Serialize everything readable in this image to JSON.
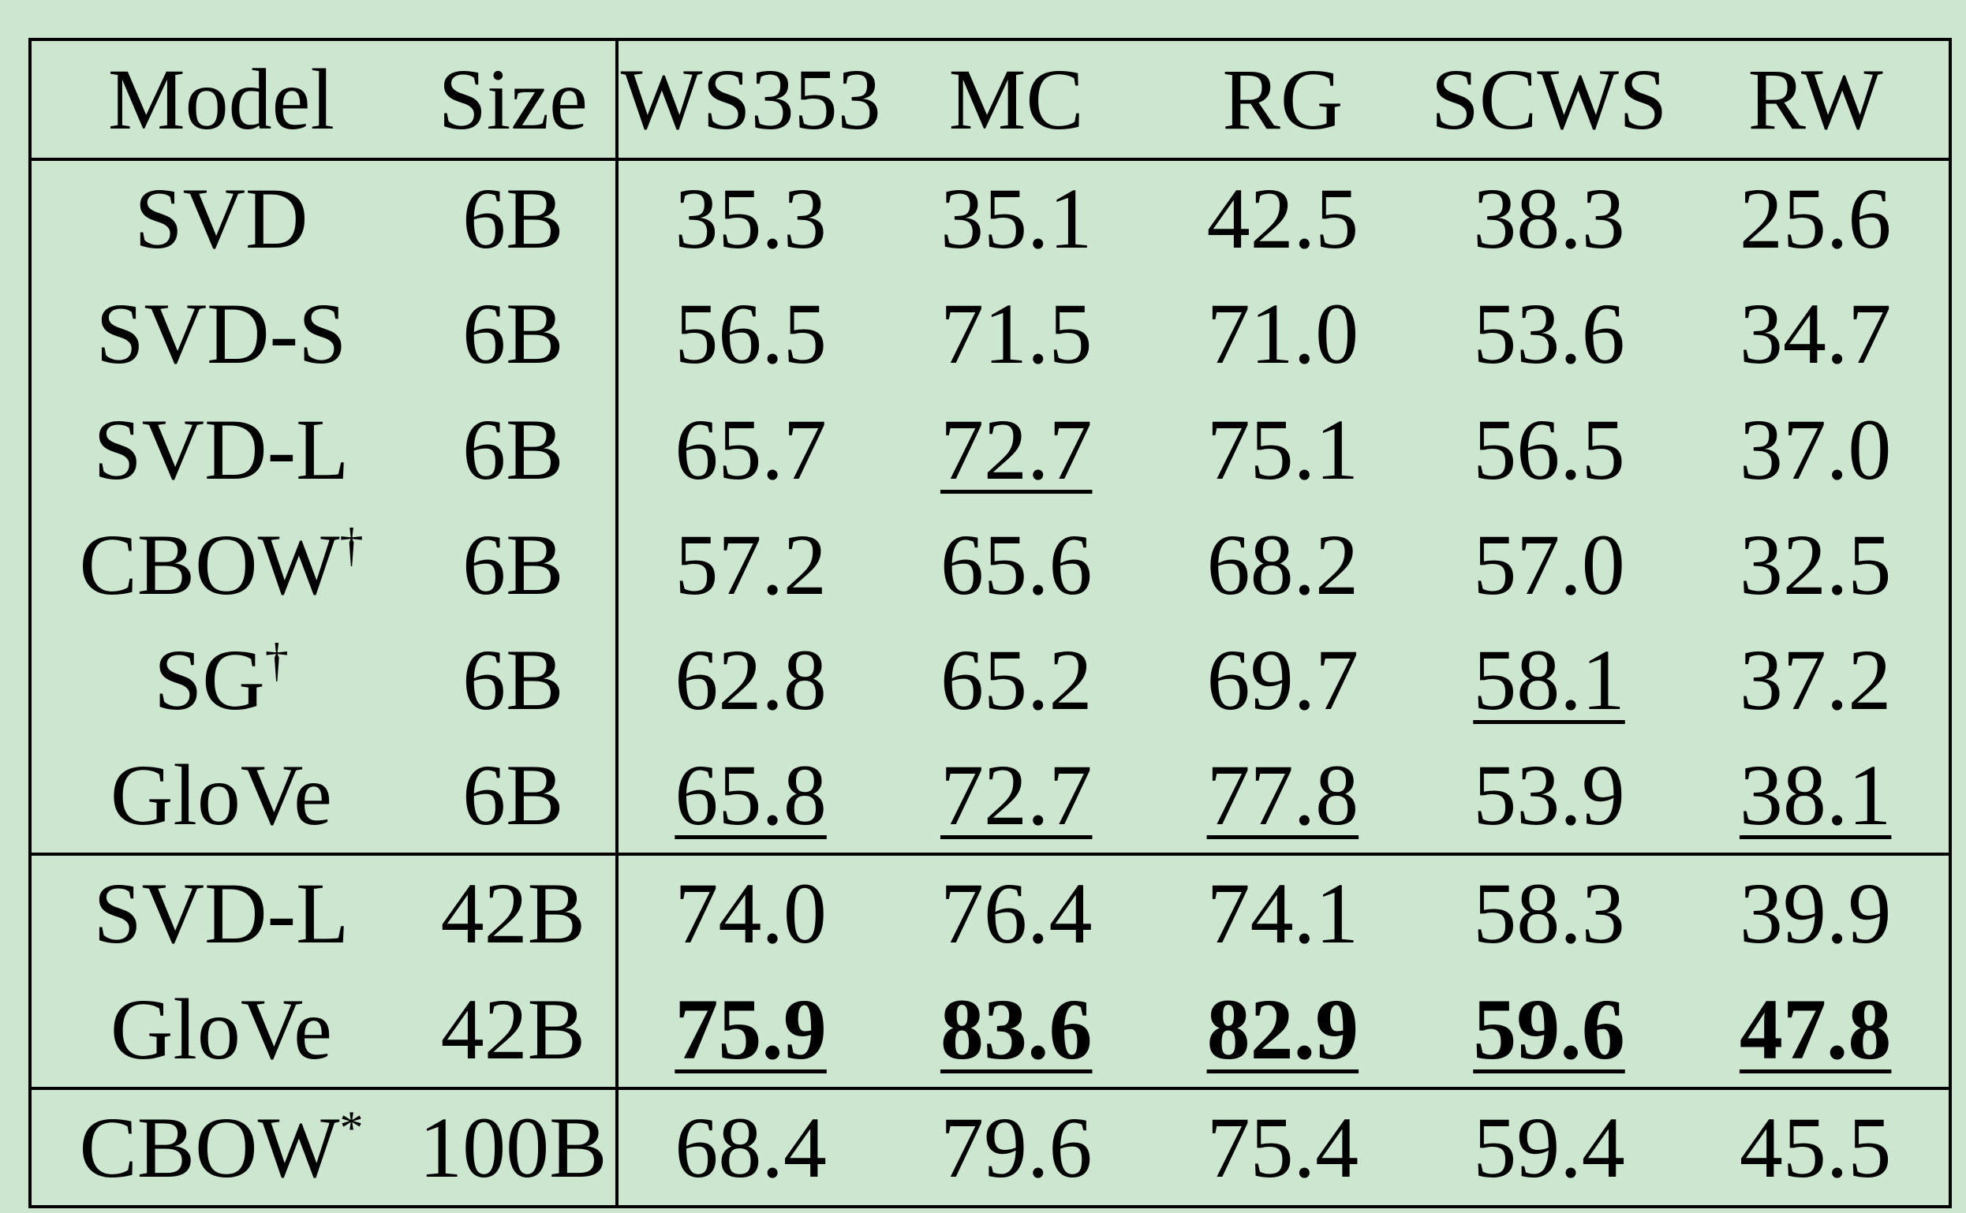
{
  "chart_data": {
    "type": "table",
    "columns": [
      "Model",
      "Size",
      "WS353",
      "MC",
      "RG",
      "SCWS",
      "RW"
    ],
    "groups": [
      {
        "rows": [
          {
            "model": "SVD",
            "sup": "",
            "size": "6B",
            "values": [
              "35.3",
              "35.1",
              "42.5",
              "38.3",
              "25.6"
            ],
            "underline": [
              false,
              false,
              false,
              false,
              false
            ],
            "bold": [
              false,
              false,
              false,
              false,
              false
            ]
          },
          {
            "model": "SVD-S",
            "sup": "",
            "size": "6B",
            "values": [
              "56.5",
              "71.5",
              "71.0",
              "53.6",
              "34.7"
            ],
            "underline": [
              false,
              false,
              false,
              false,
              false
            ],
            "bold": [
              false,
              false,
              false,
              false,
              false
            ]
          },
          {
            "model": "SVD-L",
            "sup": "",
            "size": "6B",
            "values": [
              "65.7",
              "72.7",
              "75.1",
              "56.5",
              "37.0"
            ],
            "underline": [
              false,
              true,
              false,
              false,
              false
            ],
            "bold": [
              false,
              false,
              false,
              false,
              false
            ]
          },
          {
            "model": "CBOW",
            "sup": "†",
            "size": "6B",
            "values": [
              "57.2",
              "65.6",
              "68.2",
              "57.0",
              "32.5"
            ],
            "underline": [
              false,
              false,
              false,
              false,
              false
            ],
            "bold": [
              false,
              false,
              false,
              false,
              false
            ]
          },
          {
            "model": "SG",
            "sup": "†",
            "size": "6B",
            "values": [
              "62.8",
              "65.2",
              "69.7",
              "58.1",
              "37.2"
            ],
            "underline": [
              false,
              false,
              false,
              true,
              false
            ],
            "bold": [
              false,
              false,
              false,
              false,
              false
            ]
          },
          {
            "model": "GloVe",
            "sup": "",
            "size": "6B",
            "values": [
              "65.8",
              "72.7",
              "77.8",
              "53.9",
              "38.1"
            ],
            "underline": [
              true,
              true,
              true,
              false,
              true
            ],
            "bold": [
              false,
              false,
              false,
              false,
              false
            ]
          }
        ]
      },
      {
        "rows": [
          {
            "model": "SVD-L",
            "sup": "",
            "size": "42B",
            "values": [
              "74.0",
              "76.4",
              "74.1",
              "58.3",
              "39.9"
            ],
            "underline": [
              false,
              false,
              false,
              false,
              false
            ],
            "bold": [
              false,
              false,
              false,
              false,
              false
            ]
          },
          {
            "model": "GloVe",
            "sup": "",
            "size": "42B",
            "values": [
              "75.9",
              "83.6",
              "82.9",
              "59.6",
              "47.8"
            ],
            "underline": [
              true,
              true,
              true,
              true,
              true
            ],
            "bold": [
              true,
              true,
              true,
              true,
              true
            ]
          }
        ]
      },
      {
        "rows": [
          {
            "model": "CBOW",
            "sup": "*",
            "size": "100B",
            "values": [
              "68.4",
              "79.6",
              "75.4",
              "59.4",
              "45.5"
            ],
            "underline": [
              false,
              false,
              false,
              false,
              false
            ],
            "bold": [
              false,
              false,
              false,
              false,
              false
            ]
          }
        ]
      }
    ]
  }
}
